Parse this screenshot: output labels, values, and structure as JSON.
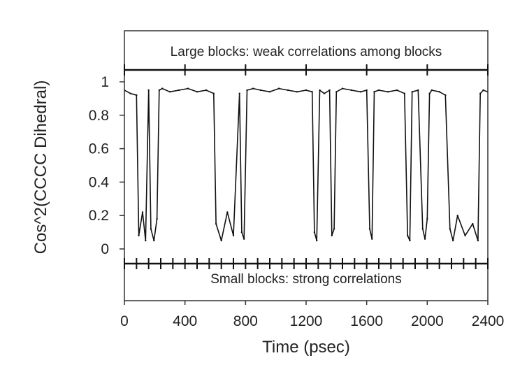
{
  "chart_data": {
    "type": "line",
    "xlabel": "Time (psec)",
    "ylabel": "Cos^2(CCCC Dihedral)",
    "xlim": [
      0,
      2400
    ],
    "ylim": [
      0,
      1
    ],
    "x_ticks": [
      {
        "value": 0,
        "label": "0"
      },
      {
        "value": 400,
        "label": "400"
      },
      {
        "value": 800,
        "label": "800"
      },
      {
        "value": 1200,
        "label": "1200"
      },
      {
        "value": 1600,
        "label": "1600"
      },
      {
        "value": 2000,
        "label": "2000"
      },
      {
        "value": 2400,
        "label": "2400"
      }
    ],
    "y_ticks": [
      {
        "value": 0,
        "label": "0"
      },
      {
        "value": 0.2,
        "label": "0.2"
      },
      {
        "value": 0.4,
        "label": "0.4"
      },
      {
        "value": 0.6,
        "label": "0.6"
      },
      {
        "value": 0.8,
        "label": "0.8"
      },
      {
        "value": 1,
        "label": "1"
      }
    ],
    "annotations": {
      "top": "Large blocks: weak correlations among blocks",
      "bottom": "Small blocks: strong correlations"
    },
    "large_block_boundaries": [
      0,
      400,
      800,
      1200,
      1600,
      2000,
      2400
    ],
    "small_block_boundaries": [
      0,
      80,
      160,
      240,
      320,
      400,
      480,
      560,
      640,
      720,
      800,
      880,
      960,
      1040,
      1120,
      1200,
      1280,
      1360,
      1440,
      1520,
      1600,
      1680,
      1760,
      1840,
      1920,
      2000,
      2080,
      2160,
      2240,
      2320,
      2400
    ],
    "series": [
      {
        "color": "#111111",
        "x": [
          0,
          40,
          80,
          95,
          120,
          140,
          160,
          175,
          195,
          215,
          230,
          250,
          300,
          360,
          420,
          480,
          540,
          590,
          605,
          640,
          680,
          720,
          760,
          775,
          790,
          810,
          850,
          900,
          960,
          1020,
          1080,
          1140,
          1200,
          1240,
          1255,
          1270,
          1290,
          1320,
          1355,
          1370,
          1385,
          1400,
          1440,
          1500,
          1560,
          1600,
          1620,
          1635,
          1650,
          1680,
          1740,
          1800,
          1850,
          1870,
          1885,
          1900,
          1940,
          1970,
          1985,
          2000,
          2015,
          2030,
          2080,
          2120,
          2150,
          2170,
          2200,
          2250,
          2300,
          2335,
          2350,
          2370,
          2400,
          2440,
          2480
        ],
        "values": [
          0.95,
          0.93,
          0.92,
          0.08,
          0.22,
          0.05,
          0.95,
          0.12,
          0.05,
          0.18,
          0.95,
          0.96,
          0.94,
          0.95,
          0.96,
          0.94,
          0.95,
          0.93,
          0.15,
          0.05,
          0.22,
          0.08,
          0.93,
          0.1,
          0.06,
          0.95,
          0.96,
          0.95,
          0.94,
          0.96,
          0.95,
          0.94,
          0.95,
          0.94,
          0.1,
          0.05,
          0.95,
          0.93,
          0.95,
          0.08,
          0.12,
          0.94,
          0.96,
          0.95,
          0.94,
          0.95,
          0.12,
          0.06,
          0.94,
          0.95,
          0.94,
          0.95,
          0.93,
          0.08,
          0.05,
          0.94,
          0.95,
          0.12,
          0.06,
          0.18,
          0.93,
          0.95,
          0.94,
          0.92,
          0.12,
          0.05,
          0.2,
          0.08,
          0.15,
          0.05,
          0.93,
          0.95,
          0.94,
          0.96,
          0.95
        ]
      }
    ]
  }
}
